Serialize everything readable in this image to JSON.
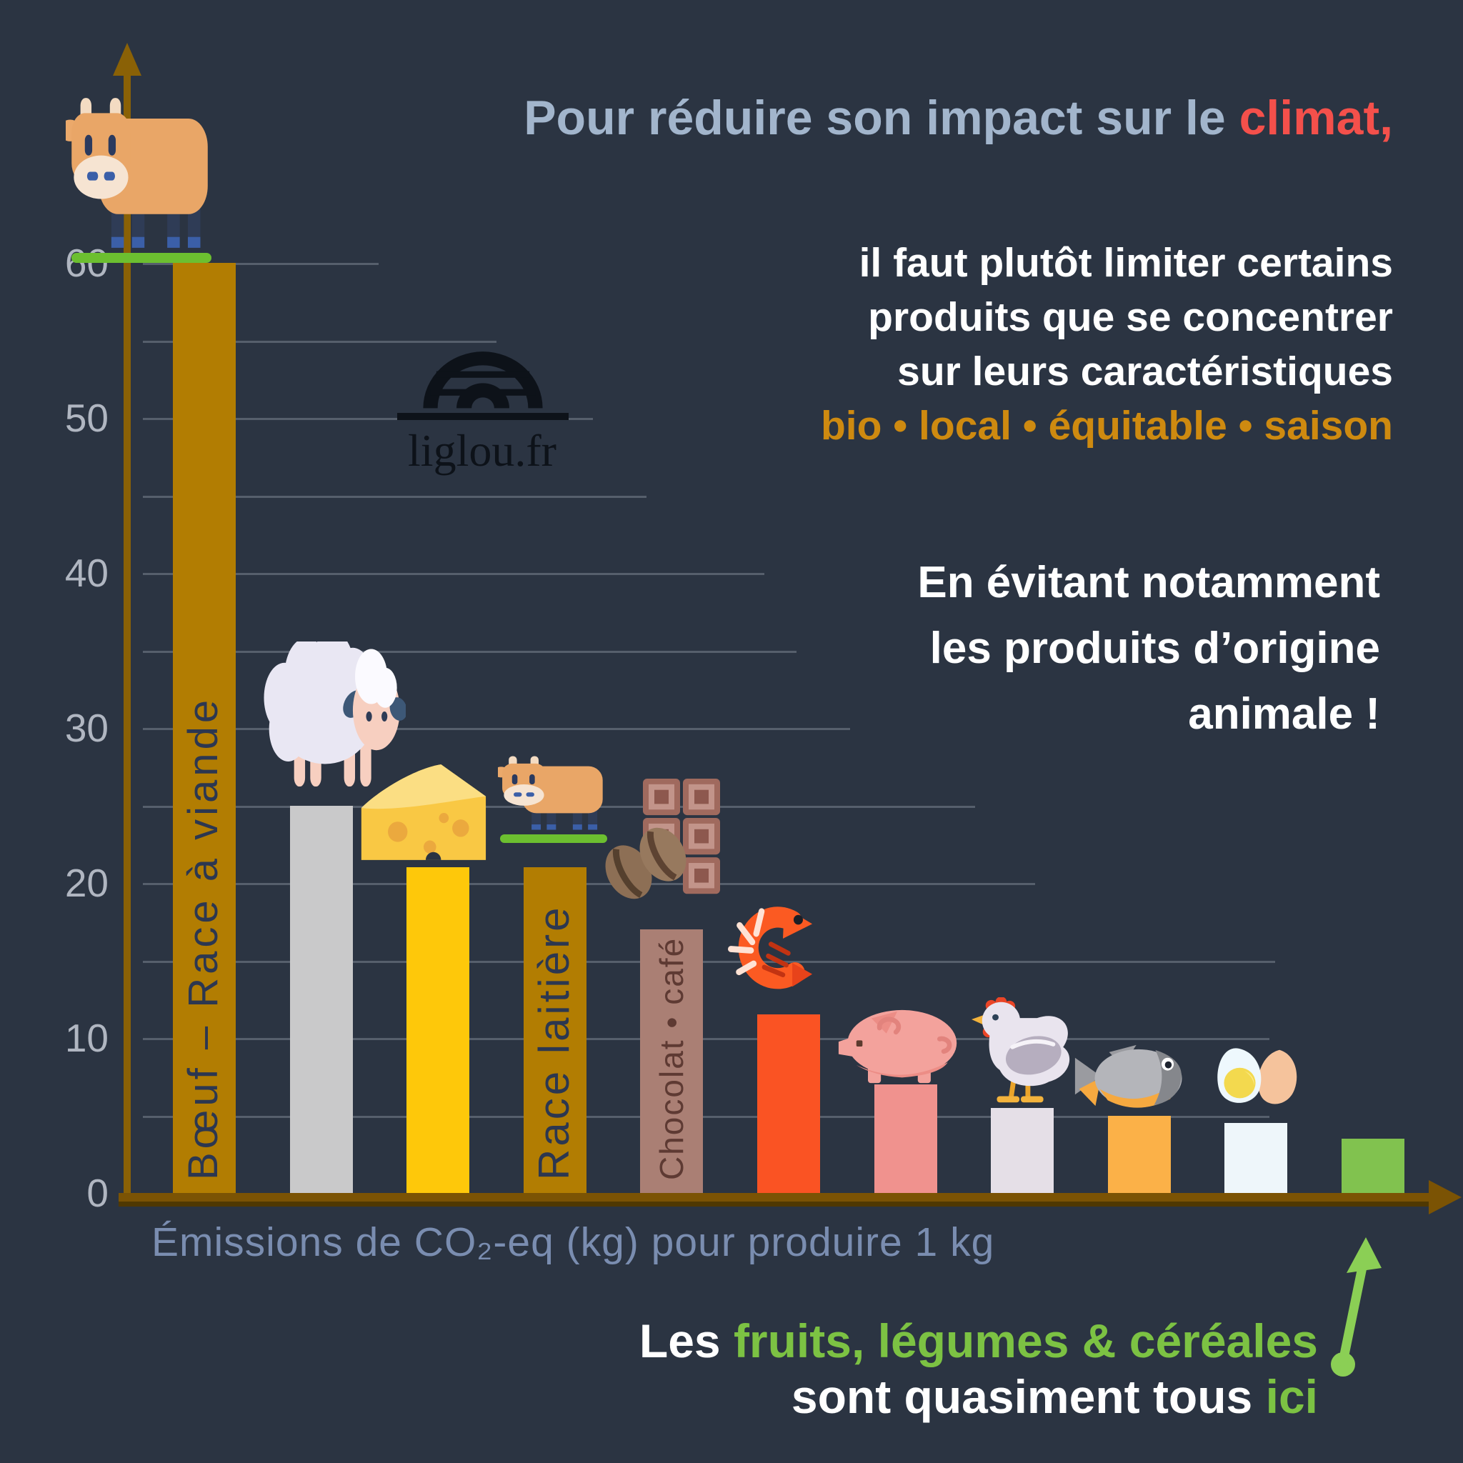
{
  "page": {
    "background": "#2b3442"
  },
  "logo": {
    "text": "liglou.fr"
  },
  "title": {
    "segments": [
      {
        "text": "Pour réduire son impact sur le ",
        "color": "#a2b5cc"
      },
      {
        "text": "climat,",
        "color": "#f4504b"
      }
    ]
  },
  "intro": {
    "lines": [
      "il faut plutôt limiter certains",
      "produits que se concentrer",
      "sur leurs caractéristiques"
    ],
    "highlight_line": "bio • local • équitable • saison",
    "highlight_color": "#ce8a10"
  },
  "callout": {
    "lines": [
      "En évitant notamment",
      "les produits d’origine",
      "animale !"
    ]
  },
  "footer": {
    "segments_line1": [
      {
        "text": "Les ",
        "color": "#ffffff"
      },
      {
        "text": "fruits, légumes & céréales",
        "color": "#7cc243"
      }
    ],
    "segments_line2": [
      {
        "text": "sont quasiment tous ",
        "color": "#ffffff"
      },
      {
        "text": "ici",
        "color": "#7cc243"
      }
    ],
    "arrow_color": "#8bcf55"
  },
  "chart_data": {
    "type": "bar",
    "xlabel": "Émissions de CO₂-eq (kg) pour produire 1 kg",
    "ylabel": "",
    "ylim": [
      0,
      60
    ],
    "yticks": [
      0,
      10,
      20,
      30,
      40,
      50,
      60
    ],
    "grid_step": 5,
    "grid": true,
    "legend_position": "none",
    "bars": [
      {
        "icon": "cow",
        "value": 60,
        "color": "#b27d02",
        "bar_label": "Bœuf – Race à viande",
        "bar_label_color": "#2c3750"
      },
      {
        "icon": "sheep",
        "value": 25,
        "color": "#c9c9ca",
        "bar_label": ""
      },
      {
        "icon": "cheese",
        "value": 21,
        "color": "#fec80a",
        "bar_label": ""
      },
      {
        "icon": "cow-small",
        "value": 21,
        "color": "#b27d02",
        "bar_label": "Race laitière",
        "bar_label_color": "#2c3750"
      },
      {
        "icon": "chocolate-coffee",
        "value": 17,
        "color": "#aa7f74",
        "bar_label": "Chocolat • café",
        "bar_label_color": "#5e3a33"
      },
      {
        "icon": "shrimp",
        "value": 11.5,
        "color": "#fa5323",
        "bar_label": ""
      },
      {
        "icon": "pig",
        "value": 7,
        "color": "#f0928e",
        "bar_label": ""
      },
      {
        "icon": "chicken",
        "value": 5.5,
        "color": "#e5dfe7",
        "bar_label": ""
      },
      {
        "icon": "fish",
        "value": 5,
        "color": "#fbb148",
        "bar_label": ""
      },
      {
        "icon": "egg",
        "value": 4.5,
        "color": "#eef6fa",
        "bar_label": ""
      },
      {
        "icon": "none",
        "value": 3.5,
        "color": "#81c24f",
        "bar_label": ""
      }
    ],
    "style": {
      "y_axis_color": "#8a6106",
      "baseline_color": "#7b5304",
      "tick_color": "#b0b6c1",
      "gridline_color": "rgba(198,208,220,0.28)"
    }
  }
}
